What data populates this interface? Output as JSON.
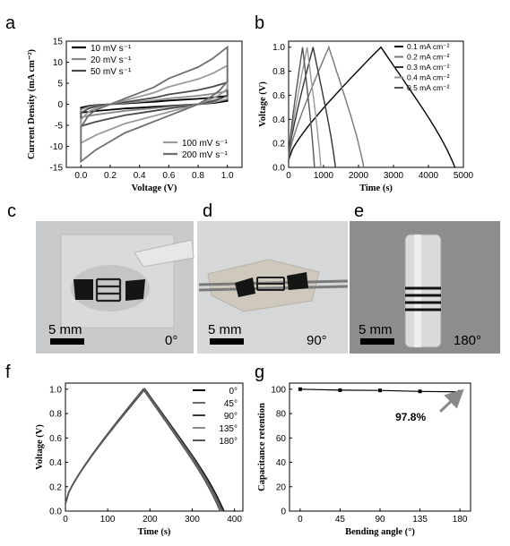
{
  "panels": {
    "a": {
      "letter": "a"
    },
    "b": {
      "letter": "b"
    },
    "c": {
      "letter": "c",
      "scale_label": "5 mm",
      "angle_label": "0°"
    },
    "d": {
      "letter": "d",
      "scale_label": "5 mm",
      "angle_label": "90°"
    },
    "e": {
      "letter": "e",
      "scale_label": "5 mm",
      "angle_label": "180°"
    },
    "f": {
      "letter": "f"
    },
    "g": {
      "letter": "g"
    }
  },
  "chart_data": [
    {
      "id": "a",
      "type": "line",
      "xlabel": "Voltage (V)",
      "ylabel": "Current Density (mA cm⁻²)",
      "xlim": [
        -0.1,
        1.1
      ],
      "ylim": [
        -15,
        15
      ],
      "xticks": [
        "0.0",
        "0.2",
        "0.4",
        "0.6",
        "0.8",
        "1.0"
      ],
      "yticks": [
        "-15",
        "-10",
        "-5",
        "0",
        "5",
        "10",
        "15"
      ],
      "series": [
        {
          "name": "10 mV s⁻¹",
          "color": "#000000",
          "scale": 1.0,
          "upper": [
            [
              0,
              -0.8
            ],
            [
              0.05,
              -0.4
            ],
            [
              0.1,
              -0.2
            ],
            [
              0.2,
              0.0
            ],
            [
              0.3,
              0.2
            ],
            [
              0.4,
              0.4
            ],
            [
              0.5,
              0.6
            ],
            [
              0.6,
              0.9
            ],
            [
              0.7,
              1.1
            ],
            [
              0.8,
              1.3
            ],
            [
              0.9,
              1.6
            ],
            [
              1.0,
              2.0
            ]
          ],
          "lower": [
            [
              1.0,
              0.8
            ],
            [
              0.95,
              0.5
            ],
            [
              0.9,
              0.3
            ],
            [
              0.8,
              0.0
            ],
            [
              0.7,
              -0.2
            ],
            [
              0.6,
              -0.4
            ],
            [
              0.5,
              -0.6
            ],
            [
              0.4,
              -0.8
            ],
            [
              0.3,
              -1.0
            ],
            [
              0.2,
              -1.3
            ],
            [
              0.1,
              -1.6
            ],
            [
              0.0,
              -2.0
            ]
          ]
        },
        {
          "name": "20 mV s⁻¹",
          "color": "#8a8a8a",
          "scale": 1.55
        },
        {
          "name": "50 mV s⁻¹",
          "color": "#4a4a4a",
          "scale": 2.6
        },
        {
          "name": "100 mV s⁻¹",
          "color": "#9a9a9a",
          "scale": 4.6
        },
        {
          "name": "200 mV s⁻¹",
          "color": "#6e6e6e",
          "scale": 6.8
        }
      ]
    },
    {
      "id": "b",
      "type": "line",
      "xlabel": "Time (s)",
      "ylabel": "Voltage (V)",
      "xlim": [
        0,
        5000
      ],
      "ylim": [
        0,
        1.05
      ],
      "xticks": [
        "0",
        "1000",
        "2000",
        "3000",
        "4000",
        "5000"
      ],
      "yticks": [
        "0.0",
        "0.2",
        "0.4",
        "0.6",
        "0.8",
        "1.0"
      ],
      "series": [
        {
          "name": "0.1 mA cm⁻²",
          "color": "#000000",
          "peak": 2640,
          "end": 4760
        },
        {
          "name": "0.2 mA cm⁻²",
          "color": "#777777",
          "peak": 1150,
          "end": 2150
        },
        {
          "name": "0.3 mA cm⁻²",
          "color": "#333333",
          "peak": 700,
          "end": 1340
        },
        {
          "name": "0.4 mA cm⁻²",
          "color": "#999999",
          "peak": 530,
          "end": 920
        },
        {
          "name": "0.5 mA cm⁻²",
          "color": "#555555",
          "peak": 400,
          "end": 740
        }
      ]
    },
    {
      "id": "f",
      "type": "line",
      "xlabel": "Time (s)",
      "ylabel": "Voltage (V)",
      "xlim": [
        0,
        420
      ],
      "ylim": [
        0,
        1.05
      ],
      "xticks": [
        "0",
        "100",
        "200",
        "300",
        "400"
      ],
      "yticks": [
        "0.0",
        "0.2",
        "0.4",
        "0.6",
        "0.8",
        "1.0"
      ],
      "series": [
        {
          "name": "0°",
          "color": "#000000",
          "peak": 188,
          "end": 375
        },
        {
          "name": "45°",
          "color": "#6a6a6a",
          "peak": 187,
          "end": 372
        },
        {
          "name": "90°",
          "color": "#3a3a3a",
          "peak": 186,
          "end": 370
        },
        {
          "name": "135°",
          "color": "#8a8a8a",
          "peak": 185,
          "end": 368
        },
        {
          "name": "180°",
          "color": "#555555",
          "peak": 184,
          "end": 366
        }
      ]
    },
    {
      "id": "g",
      "type": "line",
      "xlabel": "Bending angle (°)",
      "ylabel": "Capacitance retention",
      "xlim": [
        -12,
        192
      ],
      "ylim": [
        0,
        105
      ],
      "xticks": [
        "0",
        "45",
        "90",
        "135",
        "180"
      ],
      "yticks": [
        "0",
        "20",
        "40",
        "60",
        "80",
        "100"
      ],
      "x": [
        0,
        45,
        90,
        135,
        180
      ],
      "y": [
        100,
        99.2,
        99.0,
        98.2,
        97.8
      ],
      "annotation": "97.8%"
    }
  ]
}
